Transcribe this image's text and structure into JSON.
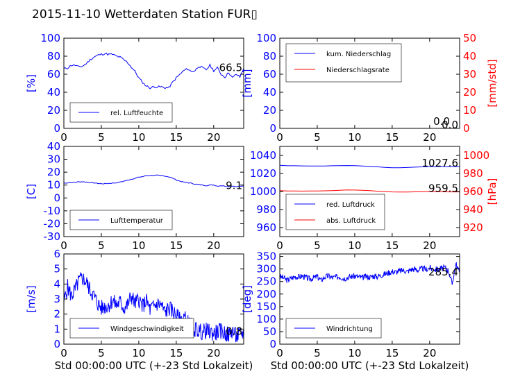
{
  "title": "2015-11-10 Wetterdaten Station FUR▯",
  "colors": {
    "primary": "#0000ff",
    "secondary": "#ff0000",
    "frame": "#000000"
  },
  "chart_data": [
    {
      "id": "humidity",
      "type": "line",
      "ylabel": "[%]",
      "xlabel": "",
      "xlim": [
        0,
        24
      ],
      "ylim": [
        0,
        100
      ],
      "xticks": [
        0,
        5,
        10,
        15,
        20
      ],
      "yticks": [
        0,
        20,
        40,
        60,
        80,
        100
      ],
      "legend": [
        "rel. Luftfeuchte"
      ],
      "legend_position": "lower-left",
      "last_value_label": "66.5",
      "series": [
        {
          "name": "rel. Luftfeuchte",
          "axis": "left",
          "x": [
            0,
            0.5,
            1,
            1.5,
            2,
            2.5,
            3,
            3.5,
            4,
            4.5,
            5,
            5.5,
            6,
            6.5,
            7,
            7.5,
            8,
            8.5,
            9,
            9.5,
            10,
            10.5,
            11,
            11.5,
            12,
            12.5,
            13,
            13.5,
            14,
            14.5,
            15,
            15.5,
            16,
            16.5,
            17,
            17.5,
            18,
            18.5,
            19,
            19.5,
            20,
            20.5,
            21,
            21.5,
            22,
            22.5,
            23,
            23.5,
            24
          ],
          "y": [
            66,
            67,
            70,
            70,
            68,
            69,
            72,
            76,
            79,
            81,
            82,
            83,
            82,
            82,
            80,
            79,
            76,
            73,
            68,
            63,
            56,
            51,
            47,
            45,
            46,
            46,
            46,
            45,
            45,
            51,
            56,
            60,
            64,
            66,
            63,
            64,
            69,
            67,
            65,
            70,
            64,
            67,
            60,
            57,
            62,
            56,
            60,
            57,
            66.5
          ]
        }
      ]
    },
    {
      "id": "precip",
      "type": "line",
      "ylabel": "[mm]",
      "ylabel_right": "[mm/std]",
      "xlabel": "",
      "xlim": [
        0,
        24
      ],
      "ylim": [
        0,
        100
      ],
      "ylim_right": [
        0,
        50
      ],
      "xticks": [
        0,
        5,
        10,
        15,
        20
      ],
      "yticks": [
        0,
        20,
        40,
        60,
        80,
        100
      ],
      "yticks_right": [
        0,
        10,
        20,
        30,
        40,
        50
      ],
      "legend": [
        "kum. Niederschlag",
        "Niederschlagsrate"
      ],
      "legend_position": "upper-left",
      "last_value_label": "0.0",
      "last_value_label_2": "0.0",
      "series": [
        {
          "name": "kum. Niederschlag",
          "axis": "left",
          "x": [
            0,
            24
          ],
          "y": [
            0,
            0
          ]
        },
        {
          "name": "Niederschlagsrate",
          "axis": "right",
          "x": [
            0,
            24
          ],
          "y": [
            0,
            0
          ]
        }
      ]
    },
    {
      "id": "temperature",
      "type": "line",
      "ylabel": "[C]",
      "xlabel": "",
      "xlim": [
        0,
        24
      ],
      "ylim": [
        -30,
        40
      ],
      "xticks": [
        0,
        5,
        10,
        15,
        20
      ],
      "yticks": [
        -30,
        -20,
        -10,
        0,
        10,
        20,
        30,
        40
      ],
      "legend": [
        "Lufttemperatur"
      ],
      "legend_position": "lower-left",
      "last_value_label": "9.1",
      "series": [
        {
          "name": "Lufttemperatur",
          "axis": "left",
          "x": [
            0,
            0.5,
            1,
            1.5,
            2,
            2.5,
            3,
            3.5,
            4,
            4.5,
            5,
            5.5,
            6,
            6.5,
            7,
            7.5,
            8,
            8.5,
            9,
            9.5,
            10,
            10.5,
            11,
            11.5,
            12,
            12.5,
            13,
            13.5,
            14,
            14.5,
            15,
            15.5,
            16,
            16.5,
            17,
            17.5,
            18,
            18.5,
            19,
            19.5,
            20,
            20.5,
            21,
            21.5,
            22,
            22.5,
            23,
            23.5,
            24
          ],
          "y": [
            11.5,
            11.8,
            12,
            12.2,
            12.5,
            12.6,
            12.3,
            12,
            11.7,
            11.3,
            11,
            11.1,
            11.3,
            11.5,
            11.8,
            12.3,
            13,
            13.8,
            14.5,
            15.3,
            16,
            16.6,
            17.2,
            17.5,
            17.6,
            17.5,
            17.3,
            17,
            16.4,
            15.3,
            14,
            13,
            12.3,
            11.8,
            11.4,
            10.8,
            10.3,
            10,
            9.6,
            9.9,
            10.1,
            9.2,
            9.6,
            9.2,
            8.9,
            9.3,
            8.8,
            9.1,
            9.1
          ]
        }
      ]
    },
    {
      "id": "pressure",
      "type": "line",
      "ylabel": "",
      "ylabel_right": "[hPa]",
      "xlabel": "",
      "xlim": [
        0,
        24
      ],
      "ylim": [
        950,
        1050
      ],
      "ylim_right": [
        910,
        1010
      ],
      "xticks": [
        0,
        5,
        10,
        15,
        20
      ],
      "yticks": [
        960,
        980,
        1000,
        1020,
        1040
      ],
      "yticks_right": [
        920,
        940,
        960,
        980,
        1000
      ],
      "legend": [
        "red. Luftdruck",
        "abs. Luftdruck"
      ],
      "legend_position": "lower-left",
      "last_value_label": "1027.6",
      "last_value_label_2": "959.5",
      "series": [
        {
          "name": "red. Luftdruck",
          "axis": "left",
          "x": [
            0,
            1,
            2,
            3,
            4,
            5,
            6,
            7,
            8,
            9,
            10,
            11,
            12,
            13,
            14,
            15,
            16,
            17,
            18,
            19,
            20,
            21,
            22,
            23,
            24
          ],
          "y": [
            1029,
            1028.5,
            1028.5,
            1028.4,
            1028.3,
            1028.2,
            1028.3,
            1028.5,
            1028.6,
            1028.8,
            1028.6,
            1028.2,
            1027.8,
            1027.4,
            1026.8,
            1026.3,
            1026.4,
            1026.6,
            1027,
            1027.3,
            1027.5,
            1027.6,
            1027.6,
            1027.6,
            1027.6
          ]
        },
        {
          "name": "abs. Luftdruck",
          "axis": "right",
          "x": [
            0,
            1,
            2,
            3,
            4,
            5,
            6,
            7,
            8,
            9,
            10,
            11,
            12,
            13,
            14,
            15,
            16,
            17,
            18,
            19,
            20,
            21,
            22,
            23,
            24
          ],
          "y": [
            961,
            960.6,
            960.6,
            960.5,
            960.6,
            960.6,
            960.8,
            961,
            961.4,
            961.7,
            961.6,
            961.3,
            960.9,
            960.4,
            959.9,
            959.5,
            959.4,
            959.4,
            959.6,
            959.7,
            959.8,
            959.7,
            959.6,
            959.5,
            959.5
          ]
        }
      ]
    },
    {
      "id": "wind-speed",
      "type": "line",
      "ylabel": "[m/s]",
      "xlabel": "Std 00:00:00 UTC (+-23 Std Lokalzeit)",
      "xlim": [
        0,
        24
      ],
      "ylim": [
        0,
        6
      ],
      "xticks": [
        0,
        5,
        10,
        15,
        20
      ],
      "yticks": [
        0,
        1,
        2,
        3,
        4,
        5,
        6
      ],
      "legend": [
        "Windgeschwindigkeit"
      ],
      "legend_position": "lower-left",
      "last_value_label": "0.8",
      "series": [
        {
          "name": "Windgeschwindigkeit",
          "axis": "left",
          "x": [
            0,
            0.5,
            1,
            1.5,
            2,
            2.5,
            3,
            3.5,
            4,
            4.5,
            5,
            5.5,
            6,
            6.5,
            7,
            7.5,
            8,
            8.5,
            9,
            9.5,
            10,
            10.5,
            11,
            11.5,
            12,
            12.5,
            13,
            13.5,
            14,
            14.5,
            15,
            15.5,
            16,
            16.5,
            17,
            17.5,
            18,
            18.5,
            19,
            19.5,
            20,
            20.5,
            21,
            21.5,
            22,
            22.5,
            23,
            23.5,
            24
          ],
          "y": [
            2.8,
            3.8,
            3.2,
            3.6,
            4.2,
            4.4,
            4.1,
            3.6,
            3.2,
            2.7,
            2.4,
            2.5,
            2.6,
            2.9,
            2.6,
            2.8,
            2.4,
            2.6,
            3.2,
            2.7,
            3,
            2.5,
            2.9,
            2.3,
            2.5,
            2.7,
            2.6,
            2.1,
            2.4,
            2.2,
            1.9,
            1.6,
            1.8,
            1.5,
            1.2,
            1,
            0.9,
            0.8,
            0.9,
            0.8,
            0.7,
            0.8,
            0.9,
            0.7,
            0.6,
            0.9,
            0.5,
            0.6,
            0.8
          ]
        }
      ]
    },
    {
      "id": "wind-direction",
      "type": "line",
      "ylabel": "[deg]",
      "xlabel": "Std 00:00:00 UTC (+-23 Std Lokalzeit)",
      "xlim": [
        0,
        24
      ],
      "ylim": [
        0,
        360
      ],
      "xticks": [
        0,
        5,
        10,
        15,
        20
      ],
      "yticks": [
        0,
        50,
        100,
        150,
        200,
        250,
        300,
        350
      ],
      "legend": [
        "Windrichtung"
      ],
      "legend_position": "lower-left",
      "last_value_label": "285.4",
      "series": [
        {
          "name": "Windrichtung",
          "axis": "left",
          "x": [
            0,
            0.5,
            1,
            1.5,
            2,
            2.5,
            3,
            3.5,
            4,
            4.5,
            5,
            5.5,
            6,
            6.5,
            7,
            7.5,
            8,
            8.5,
            9,
            9.5,
            10,
            10.5,
            11,
            11.5,
            12,
            12.5,
            13,
            13.5,
            14,
            14.5,
            15,
            15.5,
            16,
            16.5,
            17,
            17.5,
            18,
            18.5,
            19,
            19.5,
            20,
            20.5,
            21,
            21.5,
            22,
            22.5,
            23,
            23.5,
            24
          ],
          "y": [
            270,
            265,
            255,
            262,
            270,
            268,
            272,
            266,
            260,
            265,
            270,
            255,
            268,
            272,
            265,
            268,
            270,
            262,
            266,
            270,
            272,
            268,
            265,
            270,
            268,
            272,
            270,
            275,
            280,
            285,
            290,
            288,
            292,
            295,
            290,
            298,
            300,
            295,
            302,
            298,
            305,
            300,
            298,
            302,
            305,
            295,
            240,
            320,
            285.4
          ]
        }
      ]
    }
  ]
}
